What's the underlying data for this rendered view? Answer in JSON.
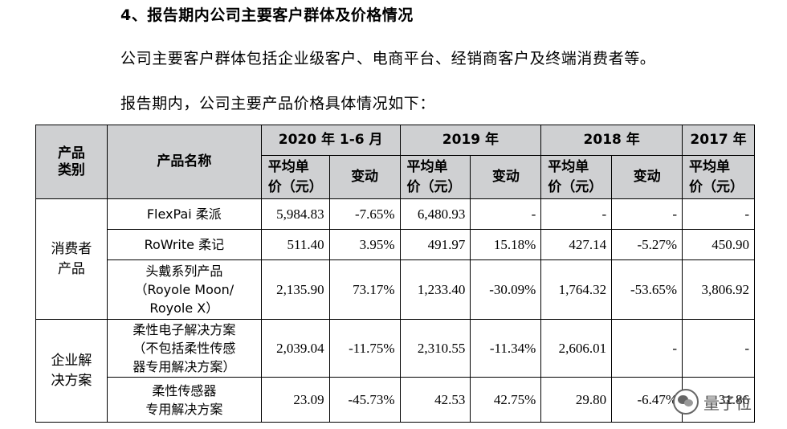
{
  "heading": "4、报告期内公司主要客户群体及价格情况",
  "paragraph1": "公司主要客户群体包括企业级客户、电商平台、经销商客户及终端消费者等。",
  "paragraph2": "报告期内，公司主要产品价格具体情况如下：",
  "table": {
    "header": {
      "category": "产品\n类别",
      "product_name": "产品名称",
      "periods": [
        "2020 年 1-6 月",
        "2019 年",
        "2018 年",
        "2017 年"
      ],
      "avg_price": "平均单\n价（元）",
      "change": "变动"
    },
    "groups": [
      {
        "category": "消费者\n产品",
        "rows": [
          {
            "name": "FlexPai 柔派",
            "values": [
              "5,984.83",
              "-7.65%",
              "6,480.93",
              "-",
              "-",
              "-",
              "-"
            ]
          },
          {
            "name": "RoWrite 柔记",
            "values": [
              "511.40",
              "3.95%",
              "491.97",
              "15.18%",
              "427.14",
              "-5.27%",
              "450.90"
            ]
          },
          {
            "name": "头戴系列产品\n（Royole Moon/\nRoyole X）",
            "values": [
              "2,135.90",
              "73.17%",
              "1,233.40",
              "-30.09%",
              "1,764.32",
              "-53.65%",
              "3,806.92"
            ]
          }
        ]
      },
      {
        "category": "企业解\n决方案",
        "rows": [
          {
            "name": "柔性电子解决方案\n（不包括柔性传感\n器专用解决方案）",
            "values": [
              "2,039.04",
              "-11.75%",
              "2,310.55",
              "-11.34%",
              "2,606.01",
              "-",
              "-"
            ]
          },
          {
            "name": "柔性传感器\n专用解决方案",
            "values": [
              "23.09",
              "-45.73%",
              "42.53",
              "42.75%",
              "29.80",
              "-6.47%",
              "31.86"
            ]
          }
        ]
      }
    ]
  },
  "watermark": {
    "text": "量子位",
    "icon": "wechat-logo-icon"
  }
}
